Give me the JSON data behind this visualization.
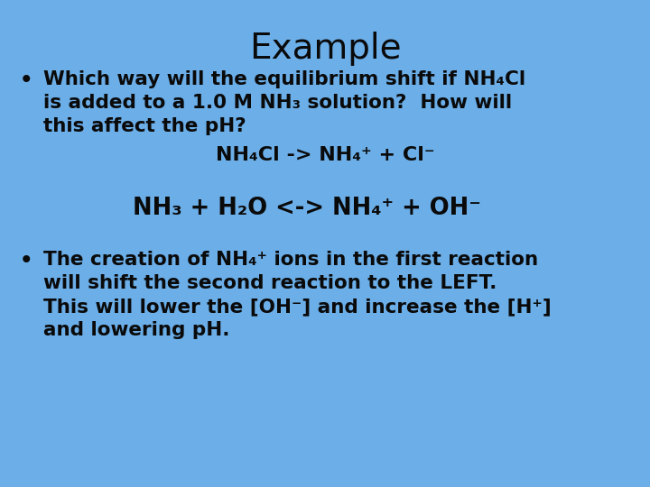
{
  "background_color": "#6baee8",
  "title": "Example",
  "title_fontsize": 28,
  "text_color": "#0a0a0a",
  "body_fontsize": 15.5,
  "eq1_fontsize": 16,
  "eq2_fontsize": 18.5,
  "bullet1_line1": "Which way will the equilibrium shift if NH₄Cl",
  "bullet1_line2": "is added to a 1.0 M NH₃ solution?  How will",
  "bullet1_line3": "this affect the pH?",
  "eq1": "NH₄Cl -> NH₄⁺ + Cl⁻",
  "eq2": "NH₃ + H₂O <-> NH₄⁺ + OH⁻",
  "bullet2_line1": "The creation of NH₄⁺ ions in the first reaction",
  "bullet2_line2": "will shift the second reaction to the LEFT.",
  "bullet2_line3": "This will lower the [OH⁻] and increase the [H⁺]",
  "bullet2_line4": "and lowering pH.",
  "font_family": "DejaVu Sans"
}
